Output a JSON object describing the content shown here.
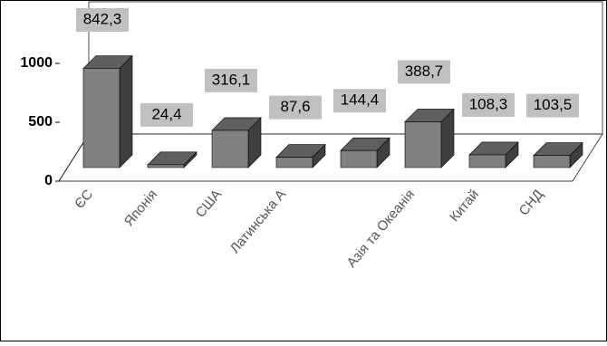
{
  "chart_data": {
    "type": "bar3d",
    "categories": [
      "ЄС",
      "Японія",
      "США",
      "Латинська А",
      null,
      "Азія та Океанія",
      "Китай",
      "СНД"
    ],
    "values": [
      842.3,
      24.4,
      316.1,
      87.6,
      144.4,
      388.7,
      108.3,
      103.5
    ],
    "value_labels": [
      "842,3",
      "24,4",
      "316,1",
      "87,6",
      "144,4",
      "388,7",
      "108,3",
      "103,5"
    ],
    "color": "#808080",
    "ylim": [
      0,
      1000
    ],
    "yticks": [
      0,
      500,
      1000
    ]
  }
}
